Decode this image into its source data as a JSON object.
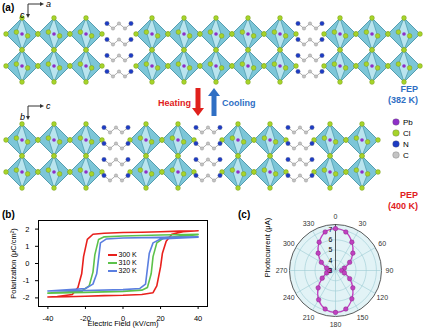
{
  "diagram": {
    "label": "(a)",
    "structures": [
      {
        "axes": [
          "a",
          "c"
        ],
        "phase": "FEP",
        "temperature": "(382 K)",
        "color": "#2f6fc4"
      },
      {
        "axes": [
          "c",
          "b"
        ],
        "phase": "PEP",
        "temperature": "(400 K)",
        "color": "#e0201c"
      }
    ],
    "arrows": [
      {
        "label": "Heating",
        "color": "#e0201c",
        "direction": "down"
      },
      {
        "label": "Cooling",
        "color": "#2f6fc4",
        "direction": "up"
      }
    ],
    "atoms": [
      {
        "label": "Pb",
        "color": "#8e2fc8"
      },
      {
        "label": "Cl",
        "color": "#a6d42a"
      },
      {
        "label": "N",
        "color": "#1d3cc4"
      },
      {
        "label": "C",
        "color": "#c4c4c4"
      }
    ]
  },
  "chart_data": [
    {
      "type": "line",
      "title": "(b)",
      "xlabel": "Electric Field (kV/cm)",
      "ylabel": "Polarization (μC/cm²)",
      "xlim": [
        -45,
        45
      ],
      "xticks": [
        -40,
        -20,
        0,
        20,
        40
      ],
      "ylim": [
        -2.5,
        2.5
      ],
      "yticks": [
        -2,
        -1,
        0,
        1,
        2
      ],
      "grid": false,
      "legend": "center",
      "series": [
        {
          "name": "300 K",
          "color": "#e8201c",
          "x": [
            40,
            30,
            20,
            10,
            0,
            -10,
            -16,
            -19,
            -21,
            -22,
            -24,
            -27,
            -35,
            -40,
            -30,
            -20,
            -10,
            0,
            10,
            16,
            18,
            20,
            21,
            23,
            26,
            32,
            40
          ],
          "values": [
            1.9,
            1.88,
            1.85,
            1.82,
            1.8,
            1.76,
            1.7,
            1.4,
            0.4,
            -0.6,
            -1.4,
            -1.8,
            -1.92,
            -1.95,
            -1.93,
            -1.9,
            -1.87,
            -1.85,
            -1.8,
            -1.7,
            -1.3,
            -0.2,
            0.6,
            1.3,
            1.7,
            1.85,
            1.9
          ]
        },
        {
          "name": "310 K",
          "color": "#5cc24a",
          "x": [
            40,
            20,
            0,
            -10,
            -13,
            -15,
            -16,
            -18,
            -22,
            -40,
            -20,
            0,
            10,
            13,
            15,
            16,
            18,
            22,
            40
          ],
          "values": [
            1.7,
            1.66,
            1.6,
            1.55,
            1.4,
            0.5,
            -0.5,
            -1.3,
            -1.6,
            -1.72,
            -1.68,
            -1.62,
            -1.55,
            -1.4,
            -0.6,
            0.4,
            1.2,
            1.5,
            1.68
          ]
        },
        {
          "name": "320 K",
          "color": "#5b7fe0",
          "x": [
            40,
            20,
            0,
            -9,
            -12,
            -13,
            -14,
            -16,
            -20,
            -40,
            -20,
            0,
            9,
            12,
            13,
            14,
            16,
            20,
            40
          ],
          "values": [
            1.55,
            1.52,
            1.48,
            1.42,
            1.2,
            0.3,
            -0.6,
            -1.2,
            -1.45,
            -1.6,
            -1.57,
            -1.52,
            -1.45,
            -1.2,
            -0.3,
            0.6,
            1.2,
            1.42,
            1.53
          ]
        }
      ]
    },
    {
      "type": "polar",
      "title": "(c)",
      "ylabel": "Photocurrent (μA)",
      "x": [
        0,
        15,
        30,
        45,
        60,
        75,
        90,
        105,
        120,
        135,
        150,
        165,
        180,
        195,
        210,
        225,
        240,
        255,
        270,
        285,
        300,
        315,
        330,
        345
      ],
      "values": [
        7.1,
        6.9,
        6.2,
        5.4,
        4.6,
        3.9,
        3.6,
        3.9,
        4.6,
        5.4,
        6.2,
        6.9,
        7.1,
        6.9,
        6.3,
        5.4,
        4.5,
        3.9,
        3.6,
        3.9,
        4.6,
        5.4,
        6.2,
        6.9
      ],
      "color": "#c040c0",
      "marker": "circle",
      "line_style": "solid",
      "xlim": [
        0,
        360
      ],
      "xticks": [
        0,
        30,
        60,
        90,
        120,
        150,
        180,
        210,
        240,
        270,
        300,
        330
      ],
      "ylim": [
        3,
        7.5
      ],
      "yticks": [
        3,
        4,
        5,
        6,
        7
      ],
      "grid": true
    }
  ]
}
